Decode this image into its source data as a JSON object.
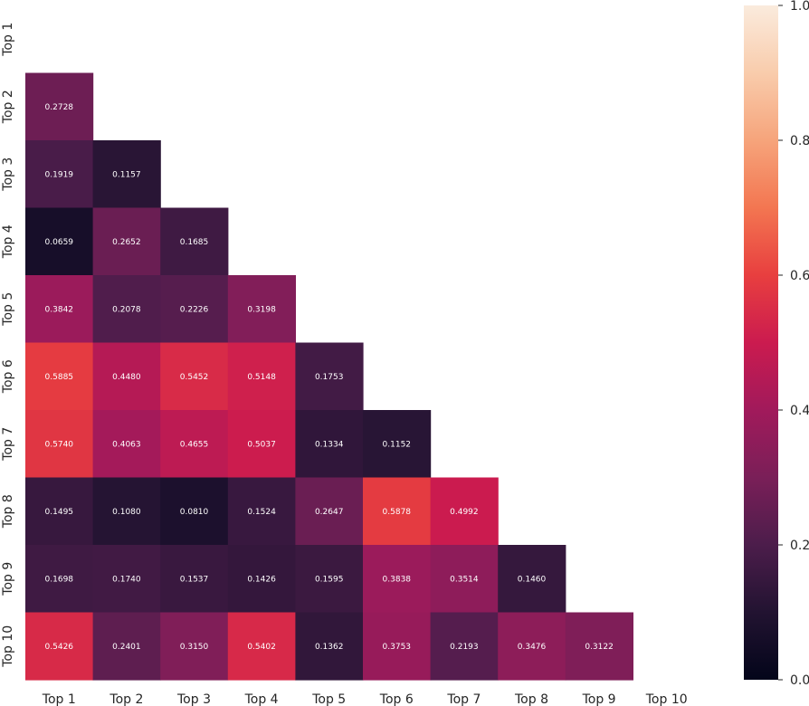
{
  "chart_data": {
    "type": "heatmap",
    "mask": "lower-triangle",
    "x_labels": [
      "Top 1",
      "Top 2",
      "Top 3",
      "Top 4",
      "Top 5",
      "Top 6",
      "Top 7",
      "Top 8",
      "Top 9",
      "Top 10"
    ],
    "y_labels": [
      "Top 1",
      "Top 2",
      "Top 3",
      "Top 4",
      "Top 5",
      "Top 6",
      "Top 7",
      "Top 8",
      "Top 9",
      "Top 10"
    ],
    "values": [
      [
        null,
        null,
        null,
        null,
        null,
        null,
        null,
        null,
        null,
        null
      ],
      [
        "0.2728",
        null,
        null,
        null,
        null,
        null,
        null,
        null,
        null,
        null
      ],
      [
        "0.1919",
        "0.1157",
        null,
        null,
        null,
        null,
        null,
        null,
        null,
        null
      ],
      [
        "0.0659",
        "0.2652",
        "0.1685",
        null,
        null,
        null,
        null,
        null,
        null,
        null
      ],
      [
        "0.3842",
        "0.2078",
        "0.2226",
        "0.3198",
        null,
        null,
        null,
        null,
        null,
        null
      ],
      [
        "0.5885",
        "0.4480",
        "0.5452",
        "0.5148",
        "0.1753",
        null,
        null,
        null,
        null,
        null
      ],
      [
        "0.5740",
        "0.4063",
        "0.4655",
        "0.5037",
        "0.1334",
        "0.1152",
        null,
        null,
        null,
        null
      ],
      [
        "0.1495",
        "0.1080",
        "0.0810",
        "0.1524",
        "0.2647",
        "0.5878",
        "0.4992",
        null,
        null,
        null
      ],
      [
        "0.1698",
        "0.1740",
        "0.1537",
        "0.1426",
        "0.1595",
        "0.3838",
        "0.3514",
        "0.1460",
        null,
        null
      ],
      [
        "0.5426",
        "0.2401",
        "0.3150",
        "0.5402",
        "0.1362",
        "0.3753",
        "0.2193",
        "0.3476",
        "0.3122",
        null
      ]
    ],
    "colorbar": {
      "vmin": 0.0,
      "vmax": 1.0,
      "ticks": [
        "0.0",
        "0.2",
        "0.4",
        "0.6",
        "0.8",
        "1.0"
      ],
      "colormap": "rocket",
      "colors": [
        "#03051a",
        "#221331",
        "#4c1d4b",
        "#7a1f58",
        "#a11a5b",
        "#cb1b4f",
        "#e83f3f",
        "#f37651",
        "#f6a47b",
        "#f9ccac",
        "#faebdd"
      ]
    }
  }
}
